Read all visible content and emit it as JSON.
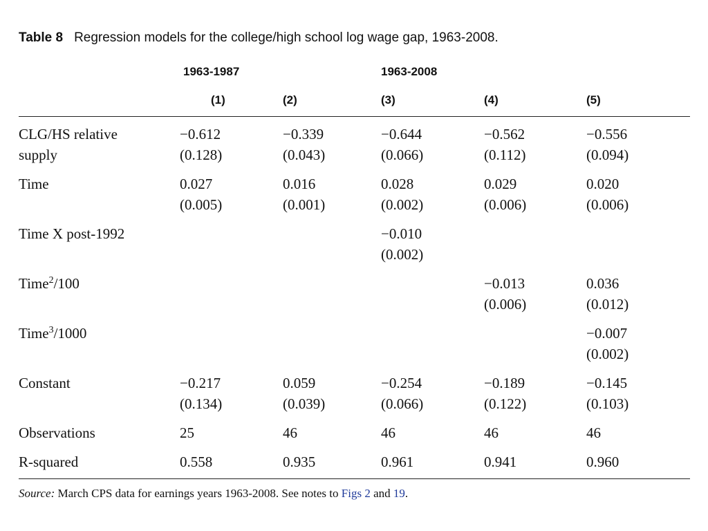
{
  "caption": {
    "label": "Table 8",
    "text": "Regression models for the college/high school log wage gap, 1963-2008."
  },
  "header": {
    "period_1": "1963-1987",
    "period_2": "1963-2008",
    "columns": [
      "(1)",
      "(2)",
      "(3)",
      "(4)",
      "(5)"
    ]
  },
  "rows": {
    "supply": {
      "label_line1": "CLG/HS relative",
      "label_line2": "supply",
      "coef": [
        "−0.612",
        "−0.339",
        "−0.644",
        "−0.562",
        "−0.556"
      ],
      "se": [
        "(0.128)",
        "(0.043)",
        "(0.066)",
        "(0.112)",
        "(0.094)"
      ]
    },
    "time": {
      "label": "Time",
      "coef": [
        "0.027",
        "0.016",
        "0.028",
        "0.029",
        "0.020"
      ],
      "se": [
        "(0.005)",
        "(0.001)",
        "(0.002)",
        "(0.006)",
        "(0.006)"
      ]
    },
    "post1992": {
      "label": "Time X post-1992",
      "coef3": "−0.010",
      "se3": "(0.002)"
    },
    "time2": {
      "label_base": "Time",
      "label_exp": "2",
      "label_rest": "/100",
      "coef4": "−0.013",
      "se4": "(0.006)",
      "coef5": "0.036",
      "se5": "(0.012)"
    },
    "time3": {
      "label_base": "Time",
      "label_exp": "3",
      "label_rest": "/1000",
      "coef5": "−0.007",
      "se5": "(0.002)"
    },
    "constant": {
      "label": "Constant",
      "coef": [
        "−0.217",
        "0.059",
        "−0.254",
        "−0.189",
        "−0.145"
      ],
      "se": [
        "(0.134)",
        "(0.039)",
        "(0.066)",
        "(0.122)",
        "(0.103)"
      ]
    },
    "observations": {
      "label": "Observations",
      "values": [
        "25",
        "46",
        "46",
        "46",
        "46"
      ]
    },
    "rsquared": {
      "label": "R-squared",
      "values": [
        "0.558",
        "0.935",
        "0.961",
        "0.941",
        "0.960"
      ]
    }
  },
  "source": {
    "label": "Source:",
    "text": " March CPS data for earnings years 1963-2008. See notes to ",
    "link1": "Figs 2",
    "and": " and ",
    "link2": "19",
    "end": "."
  }
}
